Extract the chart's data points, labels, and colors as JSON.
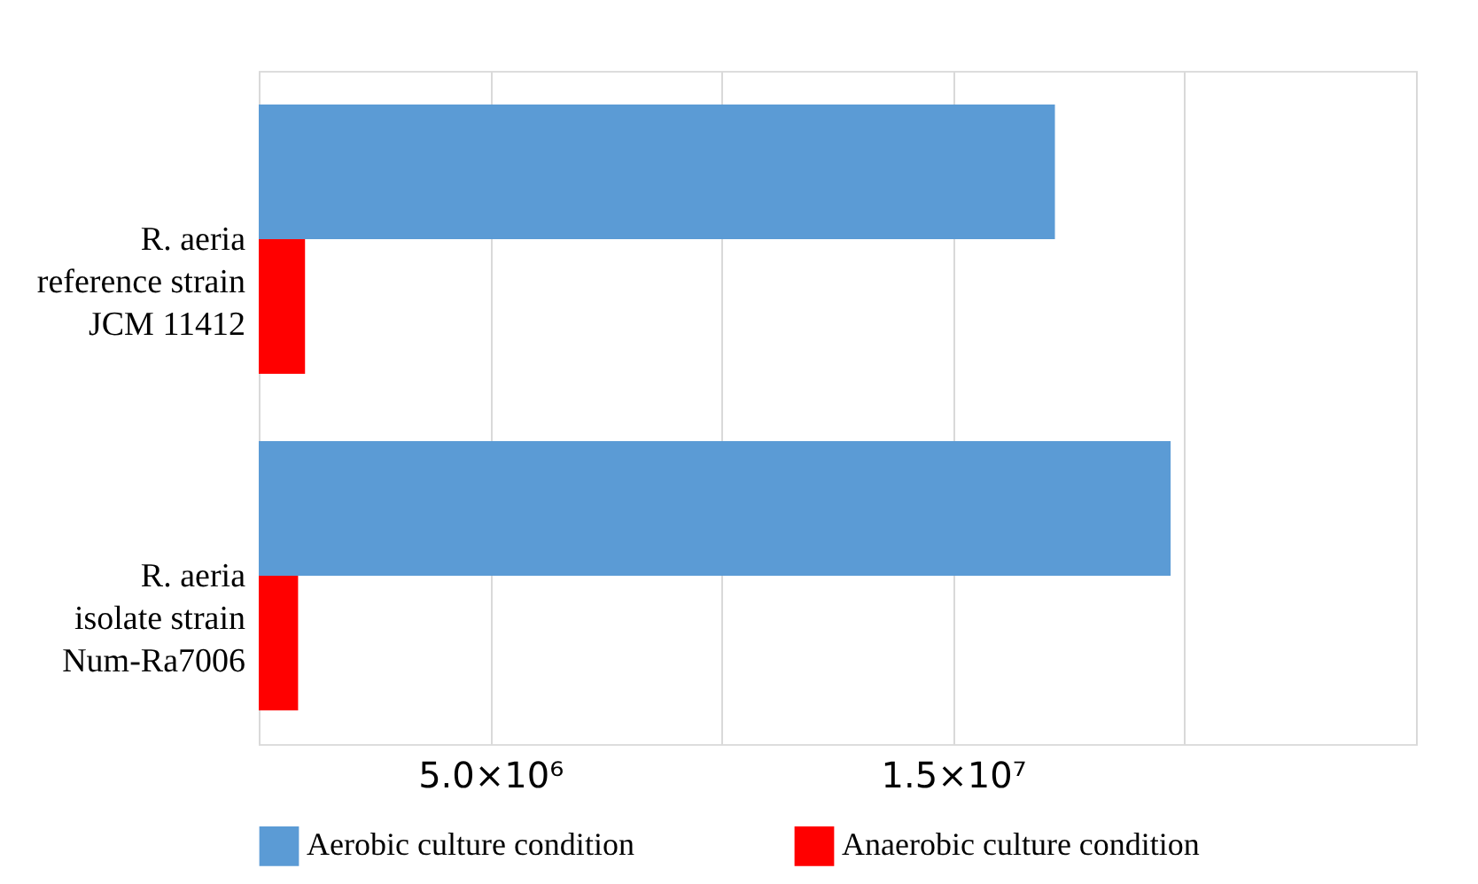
{
  "chart_data": {
    "type": "bar",
    "orientation": "horizontal",
    "categories": [
      "R. aeria\nreference strain\nJCM 11412",
      "R. aeria\nisolate strain\nNum-Ra7006"
    ],
    "series": [
      {
        "name": "Aerobic culture condition",
        "color": "#5b9bd5",
        "values": [
          17200000,
          19700000
        ]
      },
      {
        "name": "Anaerobic culture condition",
        "color": "#ff0000",
        "values": [
          1000000,
          850000
        ]
      }
    ],
    "xlim": [
      0,
      25000000
    ],
    "xticks": [
      {
        "value": 0,
        "label": null
      },
      {
        "value": 5000000,
        "label": "5.0×10⁶"
      },
      {
        "value": 10000000,
        "label": null
      },
      {
        "value": 15000000,
        "label": "1.5×10⁷"
      },
      {
        "value": 20000000,
        "label": null
      },
      {
        "value": 25000000,
        "label": null
      }
    ],
    "grid": "x",
    "legend": "bottom"
  }
}
